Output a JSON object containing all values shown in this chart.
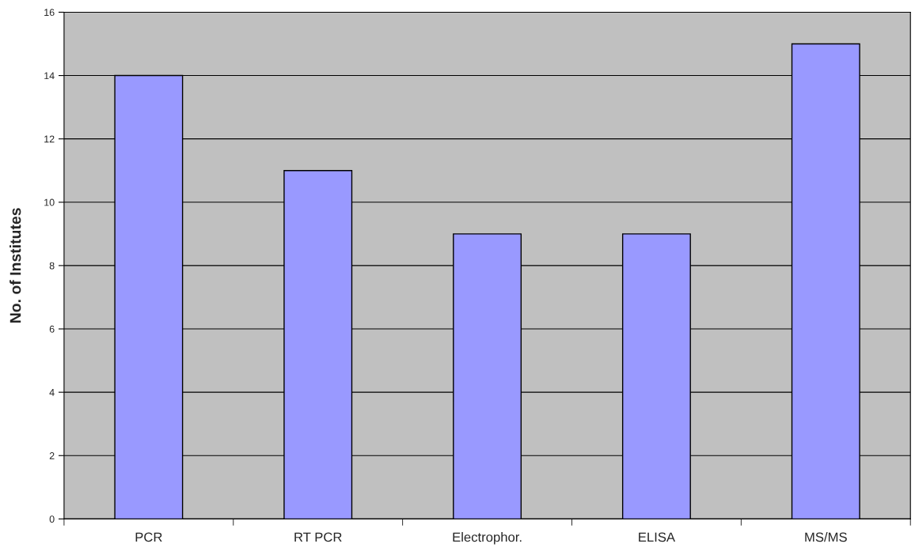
{
  "chart_data": {
    "type": "bar",
    "ylabel": "No. of Institutes",
    "categories": [
      "PCR",
      "RT PCR",
      "Electrophor.",
      "ELISA",
      "MS/MS"
    ],
    "values": [
      14,
      11,
      9,
      9,
      15
    ],
    "color": "#9999ff",
    "ylim": [
      0,
      16
    ],
    "yticks": [
      0,
      2,
      4,
      6,
      8,
      10,
      12,
      14,
      16
    ],
    "grid": "y",
    "legend": false
  }
}
